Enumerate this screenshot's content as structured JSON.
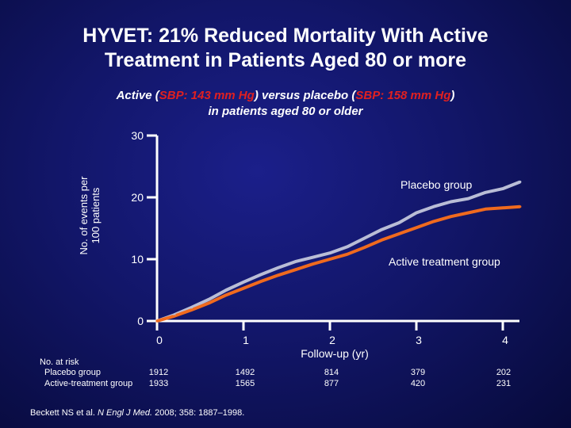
{
  "title_line1": "HYVET: 21% Reduced Mortality With Active",
  "title_line2": "Treatment in Patients Aged 80 or more",
  "subtitle": {
    "p1": "Active (",
    "r1": "SBP: 143 mm Hg",
    "p2": ") versus placebo (",
    "r2": "SBP: 158 mm Hg",
    "p3": ")",
    "line2": "in patients aged 80 or older"
  },
  "colors": {
    "placebo": "#b9bdd6",
    "active": "#f06a1e",
    "highlight": "#e02020",
    "background": "#121669"
  },
  "chart_data": {
    "type": "line",
    "title": "",
    "ylabel_line1": "No. of events per",
    "ylabel_line2": "100 patients",
    "xlabel": "Follow-up (yr)",
    "xlim": [
      0,
      4.2
    ],
    "ylim": [
      0,
      30
    ],
    "yticks": [
      "0",
      "10",
      "20",
      "30"
    ],
    "xticks": [
      "0",
      "1",
      "2",
      "3",
      "4"
    ],
    "series": [
      {
        "name": "Placebo group",
        "label": "Placebo group",
        "x": [
          0,
          0.2,
          0.4,
          0.6,
          0.8,
          1.0,
          1.2,
          1.4,
          1.6,
          1.8,
          2.0,
          2.2,
          2.4,
          2.6,
          2.8,
          3.0,
          3.2,
          3.4,
          3.6,
          3.8,
          4.0,
          4.2
        ],
        "values": [
          0,
          1.0,
          2.2,
          3.5,
          5.0,
          6.3,
          7.5,
          8.6,
          9.6,
          10.3,
          11.0,
          12.0,
          13.4,
          14.8,
          15.9,
          17.5,
          18.5,
          19.3,
          19.8,
          20.8,
          21.4,
          22.5
        ]
      },
      {
        "name": "Active treatment group",
        "label": "Active treatment group",
        "x": [
          0,
          0.2,
          0.4,
          0.6,
          0.8,
          1.0,
          1.2,
          1.4,
          1.6,
          1.8,
          2.0,
          2.2,
          2.4,
          2.6,
          2.8,
          3.0,
          3.2,
          3.4,
          3.6,
          3.8,
          4.0,
          4.2
        ],
        "values": [
          0,
          0.8,
          1.8,
          2.9,
          4.2,
          5.3,
          6.4,
          7.4,
          8.3,
          9.2,
          10.0,
          10.8,
          11.9,
          13.1,
          14.1,
          15.1,
          16.1,
          16.9,
          17.5,
          18.1,
          18.3,
          18.5
        ]
      }
    ]
  },
  "at_risk": {
    "heading": "No. at risk",
    "placebo_label": "Placebo group",
    "active_label": "Active-treatment group",
    "placebo": [
      "1912",
      "1492",
      "814",
      "379",
      "202"
    ],
    "active": [
      "1933",
      "1565",
      "877",
      "420",
      "231"
    ]
  },
  "citation": {
    "pre": "Beckett NS et al. ",
    "journal": "N Engl J Med.",
    "post": " 2008; 358: 1887–1998."
  }
}
